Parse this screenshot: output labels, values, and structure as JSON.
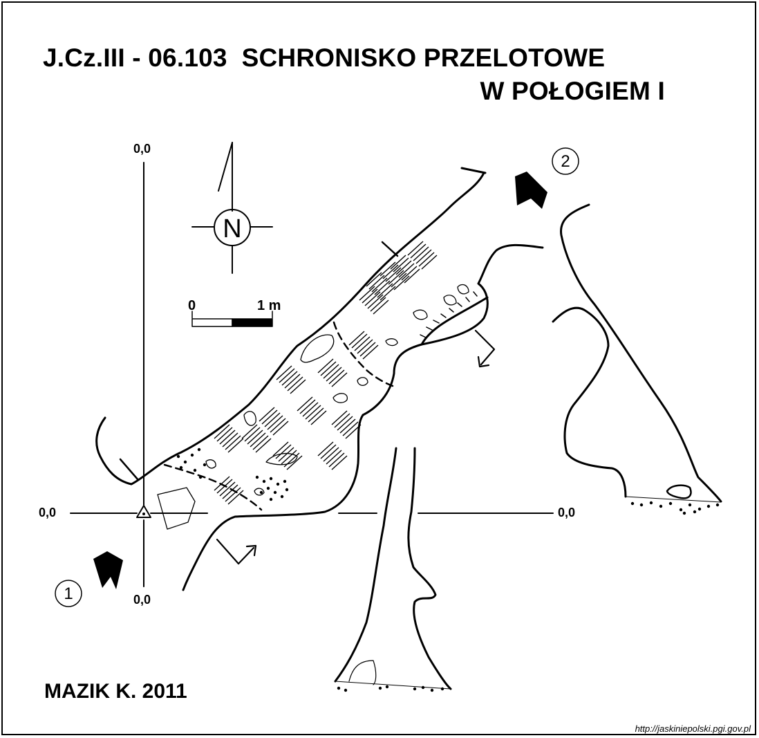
{
  "title": {
    "line1": "J.Cz.III - 06.103  SCHRONISKO PRZELOTOWE",
    "line2": "W POŁOGIEM I"
  },
  "author": "MAZIK K. 2011",
  "source": "http://jaskiniepolski.pgi.gov.pl",
  "north_label": "N",
  "scale": {
    "start_label": "0",
    "end_label": "1 m"
  },
  "coords": {
    "top": "0,0",
    "bottom": "0,0",
    "left": "0,0",
    "right": "0,0"
  },
  "entrances": [
    {
      "label": "①"
    },
    {
      "label": "②"
    }
  ]
}
